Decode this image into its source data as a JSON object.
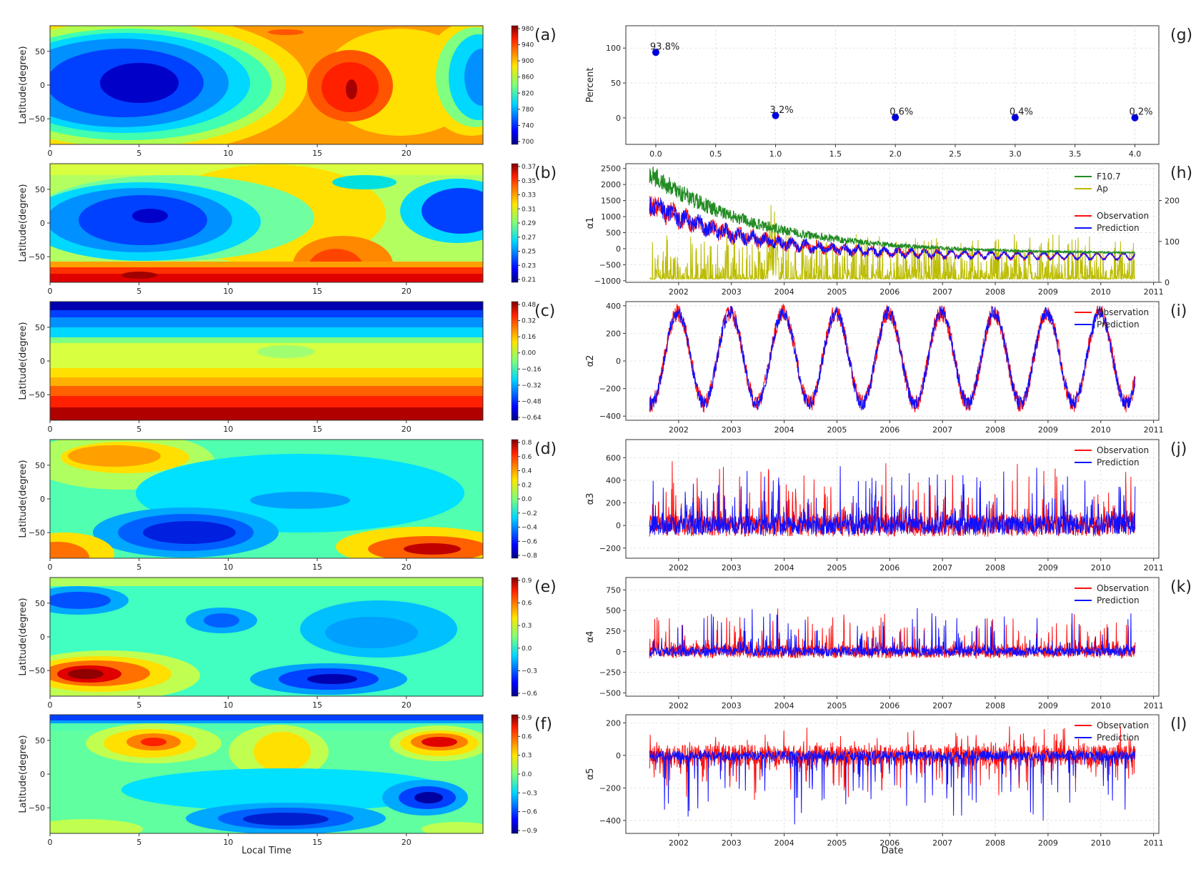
{
  "figure": {
    "left_xlabel": "Local Time",
    "left_ylabel": "Latitude(degree)",
    "right_xlabel": "Date"
  },
  "colors": {
    "observation": "#ff1010",
    "prediction": "#1010ff",
    "f107": "#228b22",
    "ap": "#bcbc00",
    "scatter_point": "#0000dd"
  },
  "legend": {
    "observation": "Observation",
    "prediction": "Prediction",
    "f107": "F10.7",
    "ap": "Ap"
  },
  "contour_panels": [
    {
      "id": "a",
      "label": "(a)",
      "colorbar_ticks": [
        "980",
        "940",
        "900",
        "860",
        "820",
        "780",
        "740",
        "700"
      ],
      "x_ticks": [
        "0",
        "5",
        "10",
        "15",
        "20"
      ],
      "y_ticks": [
        "50",
        "0",
        "−50"
      ]
    },
    {
      "id": "b",
      "label": "(b)",
      "colorbar_ticks": [
        "0.37",
        "0.35",
        "0.33",
        "0.31",
        "0.29",
        "0.27",
        "0.25",
        "0.23",
        "0.21"
      ],
      "x_ticks": [
        "0",
        "5",
        "10",
        "15",
        "20"
      ],
      "y_ticks": [
        "50",
        "0",
        "−50"
      ]
    },
    {
      "id": "c",
      "label": "(c)",
      "colorbar_ticks": [
        "0.48",
        "0.32",
        "0.16",
        "0.00",
        "−0.16",
        "−0.32",
        "−0.48",
        "−0.64"
      ],
      "x_ticks": [
        "0",
        "5",
        "10",
        "15",
        "20"
      ],
      "y_ticks": [
        "50",
        "0",
        "−50"
      ]
    },
    {
      "id": "d",
      "label": "(d)",
      "colorbar_ticks": [
        "0.8",
        "0.6",
        "0.4",
        "0.2",
        "0.0",
        "−0.2",
        "−0.4",
        "−0.6",
        "−0.8"
      ],
      "x_ticks": [
        "0",
        "5",
        "10",
        "15",
        "20"
      ],
      "y_ticks": [
        "50",
        "0",
        "−50"
      ]
    },
    {
      "id": "e",
      "label": "(e)",
      "colorbar_ticks": [
        "0.9",
        "0.6",
        "0.3",
        "0.0",
        "−0.3",
        "−0.6"
      ],
      "x_ticks": [
        "0",
        "5",
        "10",
        "15",
        "20"
      ],
      "y_ticks": [
        "50",
        "0",
        "−50"
      ]
    },
    {
      "id": "f",
      "label": "(f)",
      "colorbar_ticks": [
        "0.9",
        "0.6",
        "0.3",
        "0.0",
        "−0.3",
        "−0.6",
        "−0.9"
      ],
      "x_ticks": [
        "0",
        "5",
        "10",
        "15",
        "20"
      ],
      "y_ticks": [
        "50",
        "0",
        "−50"
      ]
    }
  ],
  "date_ticks": [
    "2002",
    "2003",
    "2004",
    "2005",
    "2006",
    "2007",
    "2008",
    "2009",
    "2010",
    "2011"
  ],
  "chart_data": [
    {
      "id": "g",
      "label": "(g)",
      "type": "scatter",
      "ylabel": "Percent",
      "x": [
        0,
        1,
        2,
        3,
        4
      ],
      "y": [
        93.8,
        3.2,
        0.6,
        0.4,
        0.2
      ],
      "point_labels": [
        "93.8%",
        "3.2%",
        "0.6%",
        "0.4%",
        "0.2%"
      ],
      "xlim": [
        -0.25,
        4.2
      ],
      "ylim": [
        -38,
        132
      ],
      "x_ticks": [
        "0.0",
        "0.5",
        "1.0",
        "1.5",
        "2.0",
        "2.5",
        "3.0",
        "3.5",
        "4.0"
      ],
      "y_ticks": [
        "100",
        "50",
        "0"
      ]
    },
    {
      "id": "h",
      "label": "(h)",
      "type": "line",
      "ylabel": "α1",
      "xlim": [
        2001.0,
        2011.1
      ],
      "ylim": [
        -1050,
        2650
      ],
      "right_ylim": [
        0,
        290
      ],
      "y_ticks": [
        "2500",
        "2000",
        "1500",
        "1000",
        "500",
        "0",
        "−500",
        "−1000"
      ],
      "right_ticks": [
        "200",
        "100",
        "0"
      ],
      "series": [
        "F10.7",
        "Ap",
        "Observation",
        "Prediction"
      ]
    },
    {
      "id": "i",
      "label": "(i)",
      "type": "line",
      "ylabel": "α2",
      "xlim": [
        2001.0,
        2011.1
      ],
      "ylim": [
        -430,
        430
      ],
      "y_ticks": [
        "400",
        "200",
        "0",
        "−200",
        "−400"
      ],
      "series": [
        "Observation",
        "Prediction"
      ]
    },
    {
      "id": "j",
      "label": "(j)",
      "type": "line",
      "ylabel": "α3",
      "xlim": [
        2001.0,
        2011.1
      ],
      "ylim": [
        -290,
        760
      ],
      "y_ticks": [
        "600",
        "400",
        "200",
        "0",
        "−200"
      ],
      "series": [
        "Observation",
        "Prediction"
      ]
    },
    {
      "id": "k",
      "label": "(k)",
      "type": "line",
      "ylabel": "α4",
      "xlim": [
        2001.0,
        2011.1
      ],
      "ylim": [
        -540,
        900
      ],
      "y_ticks": [
        "750",
        "500",
        "250",
        "0",
        "−250",
        "−500"
      ],
      "series": [
        "Observation",
        "Prediction"
      ]
    },
    {
      "id": "l",
      "label": "(l)",
      "type": "line",
      "ylabel": "α5",
      "xlim": [
        2001.0,
        2011.1
      ],
      "ylim": [
        -480,
        250
      ],
      "y_ticks": [
        "200",
        "0",
        "−200",
        "−400"
      ],
      "series": [
        "Observation",
        "Prediction"
      ]
    }
  ]
}
